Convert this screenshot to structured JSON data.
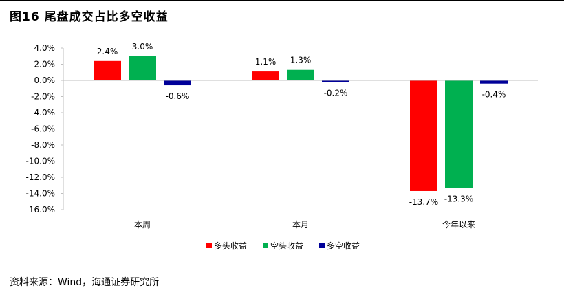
{
  "figure": {
    "title": "图16 尾盘成交占比多空收益",
    "source": "资料来源：Wind，海通证券研究所"
  },
  "colors": {
    "long": "#ff0000",
    "short": "#00b050",
    "long_short": "#000099"
  },
  "chart_data": {
    "type": "bar",
    "categories": [
      "本周",
      "本月",
      "今年以来"
    ],
    "series": [
      {
        "name": "多头收益",
        "values": [
          2.4,
          1.1,
          -13.7
        ],
        "labels": [
          "2.4%",
          "1.1%",
          "-13.7%"
        ],
        "color": "#ff0000"
      },
      {
        "name": "空头收益",
        "values": [
          3.0,
          1.3,
          -13.3
        ],
        "labels": [
          "3.0%",
          "1.3%",
          "-13.3%"
        ],
        "color": "#00b050"
      },
      {
        "name": "多空收益",
        "values": [
          -0.6,
          -0.2,
          -0.4
        ],
        "labels": [
          "-0.6%",
          "-0.2%",
          "-0.4%"
        ],
        "color": "#000099"
      }
    ],
    "ylim": [
      -16,
      4
    ],
    "yticks": [
      4,
      2,
      0,
      -2,
      -4,
      -6,
      -8,
      -10,
      -12,
      -14,
      -16
    ],
    "ytick_labels": [
      "4.0%",
      "2.0%",
      "0.0%",
      "-2.0%",
      "-4.0%",
      "-6.0%",
      "-8.0%",
      "-10.0%",
      "-12.0%",
      "-14.0%",
      "-16.0%"
    ],
    "grid": false,
    "legend_position": "bottom"
  }
}
